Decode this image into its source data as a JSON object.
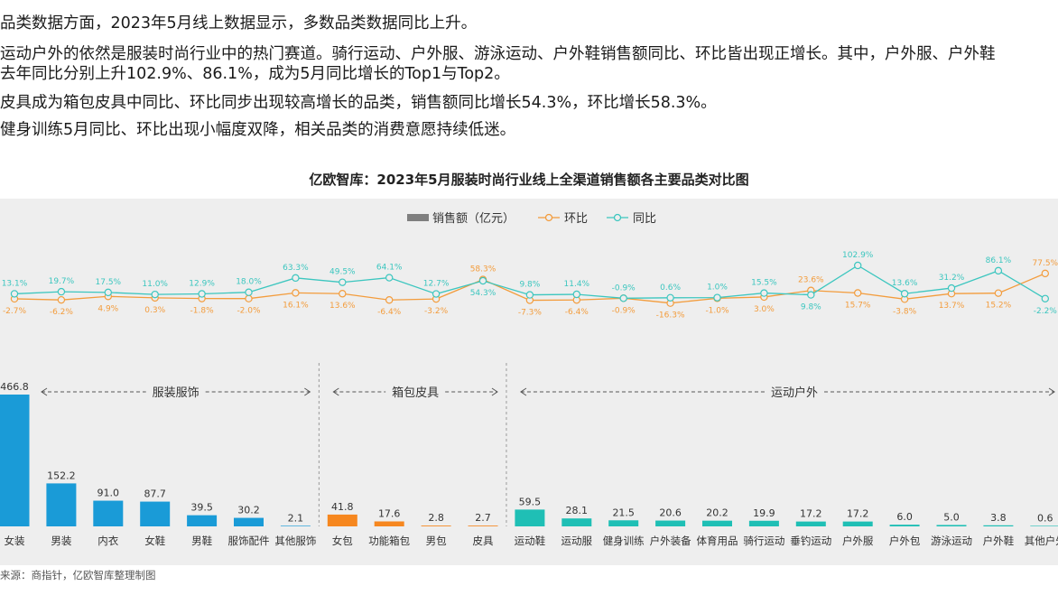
{
  "paragraphs": [
    "品类数据方面，2023年5月线上数据显示，多数品类数据同比上升。",
    "运动户外的依然是服装时尚行业中的热门赛道。骑行运动、户外服、游泳运动、户外鞋销售额同比、环比皆出现正增长。其中，户外服、户外鞋",
    "去年同比分别上升102.9%、86.1%，成为5月同比增长的Top1与Top2。",
    "皮具成为箱包皮具中同比、环比同步出现较高增长的品类，销售额同比增长54.3%，环比增长58.3%。",
    "健身训练5月同比、环比出现小幅度双降，相关品类的消费意愿持续低迷。"
  ],
  "source": "来源：商指针，亿欧智库整理制图",
  "chart_data": {
    "type": "bar",
    "title": "亿欧智库：2023年5月服装时尚行业线上全渠道销售额各主要品类对比图",
    "legend": {
      "position": "top-center",
      "items": [
        "销售额（亿元）",
        "环比",
        "同比"
      ]
    },
    "colors": {
      "legend_bar": "#7f7f7f",
      "mom": "#f39c3c",
      "yoy": "#3cc6bf",
      "fashion": "#1a9bd7",
      "bags": "#f6871f",
      "outdoor": "#1fbfb5",
      "panel": "#eeeeee"
    },
    "groups": [
      {
        "label": "服装服饰",
        "start": 0,
        "end": 6
      },
      {
        "label": "箱包皮具",
        "start": 7,
        "end": 10
      },
      {
        "label": "运动户外",
        "start": 11,
        "end": 22
      }
    ],
    "categories": [
      "女装",
      "男装",
      "内衣",
      "女鞋",
      "男鞋",
      "服饰配件",
      "其他服饰",
      "女包",
      "功能箱包",
      "男包",
      "皮具",
      "运动鞋",
      "运动服",
      "健身训练",
      "户外装备",
      "体育用品",
      "骑行运动",
      "垂钓运动",
      "户外服",
      "户外包",
      "游泳运动",
      "户外鞋",
      "其他户外"
    ],
    "series": [
      {
        "name": "销售额（亿元）",
        "type": "bar",
        "values": [
          466.8,
          152.2,
          91.0,
          87.7,
          39.5,
          30.2,
          2.1,
          41.8,
          17.6,
          2.8,
          2.7,
          59.5,
          28.1,
          21.5,
          20.6,
          20.2,
          19.9,
          17.2,
          17.2,
          6.0,
          5.0,
          3.8,
          0.6
        ],
        "labels": [
          "466.8",
          "152.2",
          "91.0",
          "87.7",
          "39.5",
          "30.2",
          "2.1",
          "41.8",
          "17.6",
          "2.8",
          "2.7",
          "59.5",
          "28.1",
          "21.5",
          "20.6",
          "20.2",
          "19.9",
          "17.2",
          "17.2",
          "6.0",
          "5.0",
          "3.8",
          "0.6"
        ]
      },
      {
        "name": "环比",
        "type": "line",
        "unit": "%",
        "values": [
          -2.7,
          -6.2,
          4.9,
          0.3,
          -1.8,
          -2.0,
          16.1,
          13.6,
          -6.4,
          -3.2,
          58.3,
          -7.3,
          -6.4,
          -0.9,
          -16.3,
          -1.0,
          3.0,
          23.6,
          15.7,
          -3.8,
          13.7,
          15.2,
          77.5
        ],
        "labels": [
          "-2.7%",
          "-6.2%",
          "4.9%",
          "0.3%",
          "-1.8%",
          "-2.0%",
          "16.1%",
          "13.6%",
          "-6.4%",
          "-3.2%",
          "58.3%",
          "-7.3%",
          "-6.4%",
          "-0.9%",
          "-16.3%",
          "-1.0%",
          "3.0%",
          "23.6%",
          "15.7%",
          "-3.8%",
          "13.7%",
          "15.2%",
          "77.5%"
        ]
      },
      {
        "name": "同比",
        "type": "line",
        "unit": "%",
        "values": [
          13.1,
          19.7,
          17.5,
          11.0,
          12.9,
          18.0,
          63.3,
          49.5,
          64.1,
          12.7,
          54.3,
          9.8,
          11.4,
          -0.9,
          0.6,
          1.0,
          15.5,
          9.8,
          102.9,
          13.6,
          31.2,
          86.1,
          -2.2
        ],
        "labels": [
          "13.1%",
          "19.7%",
          "17.5%",
          "11.0%",
          "12.9%",
          "18.0%",
          "63.3%",
          "49.5%",
          "64.1%",
          "12.7%",
          "54.3%",
          "9.8%",
          "11.4%",
          "-0.9%",
          "0.6%",
          "1.0%",
          "15.5%",
          "9.8%",
          "102.9%",
          "13.6%",
          "31.2%",
          "86.1%",
          "-2.2%"
        ]
      }
    ]
  }
}
